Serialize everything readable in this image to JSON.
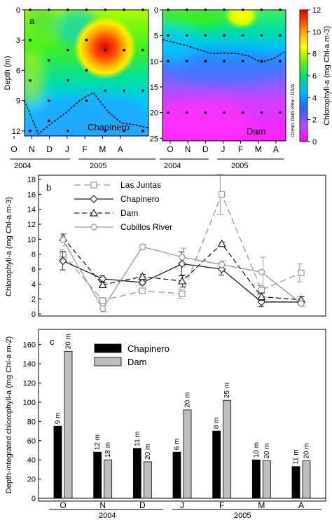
{
  "chart_data": [
    {
      "type": "heatmap",
      "panel_label": "a",
      "station": "Chapinero",
      "ylabel": "Depth (m)",
      "yticks": [
        0,
        3,
        6,
        9,
        12
      ],
      "ylim": [
        0,
        12.5
      ],
      "month_ticks": [
        "O",
        "N",
        "D",
        "J",
        "F",
        "M",
        "A"
      ],
      "years": [
        "2004",
        "2005"
      ],
      "thermocline_depth": [
        9,
        12.3,
        11.2,
        10.2,
        9.0,
        8.2,
        10.0,
        11.2,
        11.4,
        11.7
      ],
      "sample_profiles": [
        [
          0,
          3,
          7,
          12
        ],
        [
          0,
          5,
          9,
          11
        ],
        [
          0,
          4,
          7,
          12
        ],
        [
          0,
          3,
          6,
          9
        ],
        [
          0,
          4,
          8,
          12
        ],
        [
          0,
          4,
          8,
          12
        ],
        [
          0,
          4,
          8,
          12
        ]
      ]
    },
    {
      "type": "heatmap",
      "station": "Dam",
      "yticks": [
        0,
        5,
        10,
        15,
        20,
        25
      ],
      "ylim": [
        0,
        25.5
      ],
      "month_ticks": [
        "O",
        "N",
        "D",
        "J",
        "F",
        "M",
        "A"
      ],
      "years": [
        "2004",
        "2005"
      ],
      "watermark": "Ocean Data View / DIVA",
      "colorbar": {
        "label": "Chlorophyll-a (mg Chl-a m-3)",
        "ticks": [
          0,
          2,
          4,
          6,
          8,
          10,
          12
        ],
        "range": [
          0,
          12
        ]
      },
      "thermocline_depth": [
        5.8,
        6.4,
        7.0,
        7.8,
        8.5,
        8.4,
        8.5,
        9.0,
        10.2,
        9.5,
        8.0
      ],
      "sample_profiles": [
        [
          0,
          5,
          10,
          20
        ],
        [
          0,
          5,
          10,
          20
        ],
        [
          0,
          5,
          10,
          20
        ],
        [
          0,
          5,
          10,
          20
        ],
        [
          0,
          5,
          10,
          20
        ],
        [
          0,
          5,
          10,
          20
        ],
        [
          0,
          5,
          10,
          20
        ]
      ]
    },
    {
      "type": "line",
      "panel_label": "b",
      "ylabel": "Chlorophyll-a (mg Chl-a m-3)",
      "categories": [
        "O",
        "N",
        "D",
        "J",
        "F",
        "M",
        "A"
      ],
      "ylim": [
        0,
        18
      ],
      "yticks": [
        0,
        2,
        4,
        6,
        8,
        10,
        12,
        14,
        16,
        18
      ],
      "series": [
        {
          "name": "Las Juntas",
          "values": [
            8.0,
            1.8,
            3.1,
            2.7,
            16.0,
            3.2,
            5.5
          ],
          "errors": [
            0.6,
            0.3,
            0.2,
            0.6,
            2.7,
            0.6,
            1.2
          ],
          "color": "#999999",
          "marker": "square",
          "dash": "9,5"
        },
        {
          "name": "Chapinero",
          "values": [
            7.1,
            4.7,
            4.2,
            6.7,
            6.0,
            1.6,
            1.6
          ],
          "errors": [
            1.2,
            0.4,
            0.3,
            1.6,
            0.8,
            0.6,
            0.4
          ],
          "color": "#222222",
          "marker": "diamond",
          "dash": ""
        },
        {
          "name": "Dam",
          "values": [
            10.2,
            3.9,
            5.0,
            4.4,
            9.4,
            2.3,
            1.9
          ],
          "errors": [
            0.5,
            0.3,
            0.3,
            0.8,
            0.2,
            0.5,
            0.4
          ],
          "color": "#222222",
          "marker": "triangle",
          "dash": "7,4"
        },
        {
          "name": "Cubillos River",
          "values": [
            9.9,
            0.7,
            9.0,
            7.6,
            6.6,
            5.6,
            1.4
          ],
          "errors": [
            0.8,
            0.4,
            0.3,
            1.2,
            0.5,
            2.0,
            0.4
          ],
          "color": "#999999",
          "marker": "circle",
          "dash": ""
        }
      ]
    },
    {
      "type": "bar",
      "panel_label": "c",
      "ylabel": "Depth-integrated chlorophyll-a (mg Chl-a m-2)",
      "categories": [
        "O",
        "N",
        "D",
        "J",
        "F",
        "M",
        "A"
      ],
      "years": [
        "2004",
        "2005"
      ],
      "ylim": [
        0,
        170
      ],
      "yticks": [
        0,
        20,
        40,
        60,
        80,
        100,
        120,
        140,
        160
      ],
      "series": [
        {
          "name": "Chapinero",
          "values": [
            75,
            48,
            52,
            48,
            70,
            40,
            33
          ],
          "labels": [
            "9 m",
            "12 m",
            "11 m",
            "6 m",
            "8 m",
            "10 m",
            "11 m"
          ],
          "color": "#000000"
        },
        {
          "name": "Dam",
          "values": [
            153,
            40,
            38,
            92,
            102,
            39,
            39
          ],
          "labels": [
            "20 m",
            "18 m",
            "20 m",
            "20 m",
            "25 m",
            "20 m",
            "20 m"
          ],
          "color": "#bdbdbd"
        }
      ]
    }
  ]
}
